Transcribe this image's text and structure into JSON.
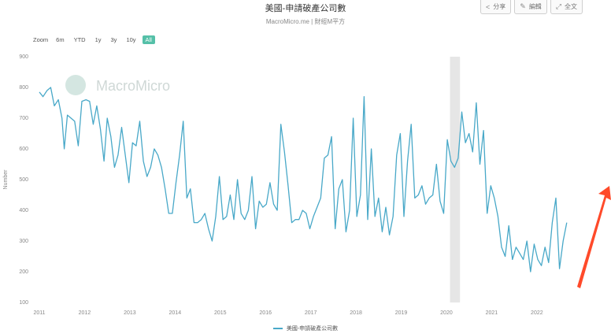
{
  "header": {
    "title": "美國-申請破產公司數",
    "subtitle": "MacroMicro.me | 財經M平方"
  },
  "toolbar": {
    "share_label": "分享",
    "edit_label": "編輯",
    "expand_label": "全文"
  },
  "zoom": {
    "label": "Zoom",
    "options": [
      "6m",
      "YTD",
      "1y",
      "3y",
      "10y",
      "All"
    ],
    "active": "All"
  },
  "watermark": {
    "text": "MacroMicro"
  },
  "colors": {
    "line": "#48a8c8",
    "shade": "#e6e6e6",
    "accent": "#55c0a8",
    "arrow": "#ff4a2a"
  },
  "chart_data": {
    "type": "line",
    "title": "美國-申請破產公司數",
    "subtitle": "MacroMicro.me | 財經M平方",
    "ylabel": "Number",
    "ylim": [
      100,
      900
    ],
    "yticks": [
      100,
      200,
      300,
      400,
      500,
      600,
      700,
      800,
      900
    ],
    "xlim": [
      2011,
      2023.5
    ],
    "xticks": [
      "2011",
      "2012",
      "2013",
      "2014",
      "2015",
      "2016",
      "2017",
      "2018",
      "2019",
      "2020",
      "2021",
      "2022"
    ],
    "grid": false,
    "legend": "bottom-center",
    "shaded_period": [
      2020.08,
      2020.3
    ],
    "series": [
      {
        "name": "美國-申請破產公司數",
        "points": [
          [
            2011.0,
            785
          ],
          [
            2011.08,
            770
          ],
          [
            2011.17,
            790
          ],
          [
            2011.25,
            800
          ],
          [
            2011.33,
            740
          ],
          [
            2011.42,
            760
          ],
          [
            2011.5,
            700
          ],
          [
            2011.55,
            600
          ],
          [
            2011.62,
            710
          ],
          [
            2011.7,
            700
          ],
          [
            2011.78,
            690
          ],
          [
            2011.86,
            610
          ],
          [
            2011.94,
            755
          ],
          [
            2012.03,
            760
          ],
          [
            2012.11,
            755
          ],
          [
            2012.19,
            680
          ],
          [
            2012.27,
            740
          ],
          [
            2012.35,
            665
          ],
          [
            2012.43,
            560
          ],
          [
            2012.5,
            700
          ],
          [
            2012.58,
            640
          ],
          [
            2012.66,
            540
          ],
          [
            2012.74,
            580
          ],
          [
            2012.82,
            670
          ],
          [
            2012.9,
            580
          ],
          [
            2012.98,
            490
          ],
          [
            2013.06,
            620
          ],
          [
            2013.14,
            610
          ],
          [
            2013.22,
            690
          ],
          [
            2013.3,
            560
          ],
          [
            2013.38,
            510
          ],
          [
            2013.46,
            540
          ],
          [
            2013.54,
            600
          ],
          [
            2013.62,
            580
          ],
          [
            2013.7,
            540
          ],
          [
            2013.78,
            470
          ],
          [
            2013.86,
            390
          ],
          [
            2013.94,
            390
          ],
          [
            2014.02,
            490
          ],
          [
            2014.1,
            580
          ],
          [
            2014.18,
            690
          ],
          [
            2014.26,
            440
          ],
          [
            2014.34,
            470
          ],
          [
            2014.42,
            360
          ],
          [
            2014.5,
            360
          ],
          [
            2014.58,
            370
          ],
          [
            2014.66,
            390
          ],
          [
            2014.74,
            340
          ],
          [
            2014.82,
            300
          ],
          [
            2014.9,
            380
          ],
          [
            2014.98,
            510
          ],
          [
            2015.06,
            370
          ],
          [
            2015.14,
            380
          ],
          [
            2015.22,
            450
          ],
          [
            2015.3,
            370
          ],
          [
            2015.38,
            500
          ],
          [
            2015.46,
            390
          ],
          [
            2015.54,
            370
          ],
          [
            2015.62,
            400
          ],
          [
            2015.7,
            510
          ],
          [
            2015.78,
            340
          ],
          [
            2015.86,
            430
          ],
          [
            2015.94,
            410
          ],
          [
            2016.02,
            420
          ],
          [
            2016.1,
            490
          ],
          [
            2016.18,
            420
          ],
          [
            2016.26,
            400
          ],
          [
            2016.34,
            680
          ],
          [
            2016.42,
            590
          ],
          [
            2016.5,
            480
          ],
          [
            2016.58,
            360
          ],
          [
            2016.66,
            370
          ],
          [
            2016.74,
            370
          ],
          [
            2016.82,
            400
          ],
          [
            2016.9,
            390
          ],
          [
            2016.98,
            340
          ],
          [
            2017.06,
            380
          ],
          [
            2017.14,
            410
          ],
          [
            2017.22,
            440
          ],
          [
            2017.3,
            570
          ],
          [
            2017.38,
            580
          ],
          [
            2017.46,
            640
          ],
          [
            2017.54,
            340
          ],
          [
            2017.62,
            470
          ],
          [
            2017.7,
            500
          ],
          [
            2017.78,
            330
          ],
          [
            2017.86,
            400
          ],
          [
            2017.94,
            700
          ],
          [
            2018.02,
            380
          ],
          [
            2018.1,
            450
          ],
          [
            2018.18,
            770
          ],
          [
            2018.26,
            370
          ],
          [
            2018.34,
            600
          ],
          [
            2018.42,
            380
          ],
          [
            2018.5,
            440
          ],
          [
            2018.58,
            330
          ],
          [
            2018.66,
            410
          ],
          [
            2018.74,
            320
          ],
          [
            2018.82,
            380
          ],
          [
            2018.9,
            580
          ],
          [
            2018.98,
            650
          ],
          [
            2019.06,
            380
          ],
          [
            2019.14,
            560
          ],
          [
            2019.22,
            680
          ],
          [
            2019.3,
            440
          ],
          [
            2019.38,
            450
          ],
          [
            2019.46,
            480
          ],
          [
            2019.54,
            420
          ],
          [
            2019.62,
            440
          ],
          [
            2019.7,
            450
          ],
          [
            2019.78,
            550
          ],
          [
            2019.86,
            430
          ],
          [
            2019.94,
            390
          ],
          [
            2020.02,
            630
          ],
          [
            2020.1,
            560
          ],
          [
            2020.18,
            540
          ],
          [
            2020.26,
            570
          ],
          [
            2020.34,
            720
          ],
          [
            2020.42,
            620
          ],
          [
            2020.5,
            650
          ],
          [
            2020.58,
            590
          ],
          [
            2020.66,
            750
          ],
          [
            2020.74,
            550
          ],
          [
            2020.82,
            660
          ],
          [
            2020.9,
            390
          ],
          [
            2020.98,
            480
          ],
          [
            2021.06,
            440
          ],
          [
            2021.14,
            380
          ],
          [
            2021.22,
            280
          ],
          [
            2021.3,
            250
          ],
          [
            2021.38,
            350
          ],
          [
            2021.46,
            240
          ],
          [
            2021.54,
            280
          ],
          [
            2021.62,
            260
          ],
          [
            2021.7,
            240
          ],
          [
            2021.78,
            300
          ],
          [
            2021.86,
            200
          ],
          [
            2021.94,
            290
          ],
          [
            2022.02,
            240
          ],
          [
            2022.1,
            220
          ],
          [
            2022.18,
            280
          ],
          [
            2022.26,
            230
          ],
          [
            2022.34,
            360
          ],
          [
            2022.42,
            440
          ],
          [
            2022.5,
            210
          ],
          [
            2022.58,
            300
          ],
          [
            2022.66,
            360
          ]
        ]
      }
    ]
  }
}
